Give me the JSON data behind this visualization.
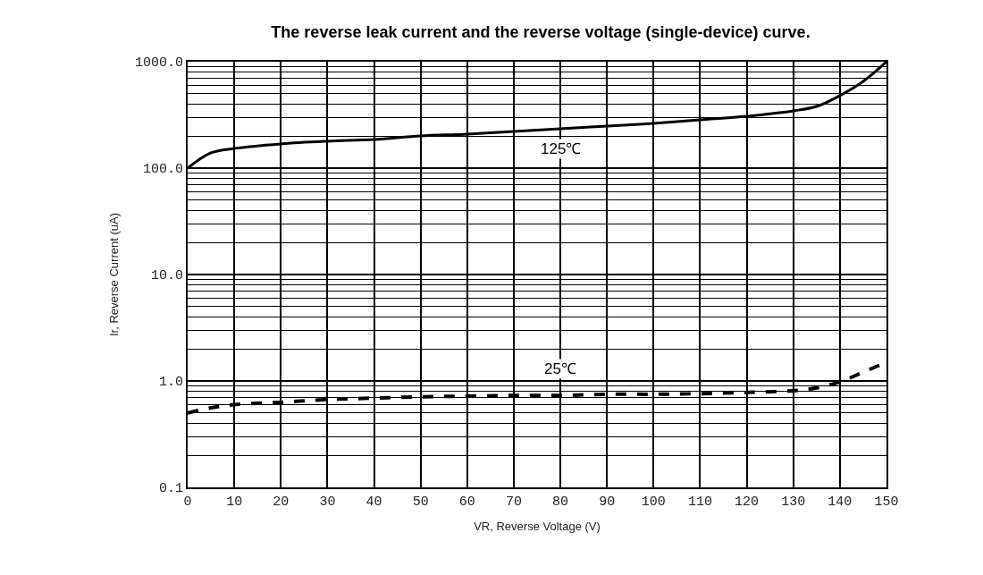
{
  "chart_data": {
    "type": "line",
    "title": "The reverse leak current and the reverse voltage (single-device) curve.",
    "xlabel": "VR, Reverse Voltage (V)",
    "ylabel": "Ir, Reverse Current (uA)",
    "x": [
      0,
      5,
      10,
      20,
      30,
      40,
      50,
      60,
      70,
      80,
      90,
      100,
      110,
      120,
      130,
      135,
      140,
      145,
      150
    ],
    "series": [
      {
        "color": "#000000",
        "line_style": "solid",
        "values": [
          100,
          139,
          153,
          169,
          179,
          186,
          201,
          209,
          221,
          234,
          248,
          263,
          284,
          307,
          345,
          380,
          480,
          653,
          1000
        ]
      },
      {
        "color": "#000000",
        "line_style": "dashed",
        "values": [
          0.5,
          0.56,
          0.6,
          0.63,
          0.67,
          0.69,
          0.71,
          0.72,
          0.73,
          0.73,
          0.75,
          0.75,
          0.76,
          0.78,
          0.81,
          0.86,
          0.98,
          1.21,
          1.5
        ]
      }
    ],
    "annotations": [
      "125℃",
      "25℃"
    ],
    "log": "y",
    "xlim": [
      0,
      150
    ],
    "xticks": [
      0,
      10,
      20,
      30,
      40,
      50,
      60,
      70,
      80,
      90,
      100,
      110,
      120,
      130,
      140,
      150
    ],
    "ylim": [
      0.1,
      1000
    ],
    "yticks": [
      {
        "value": 0.1,
        "label": "0.1"
      },
      {
        "value": 1,
        "label": "1.0"
      },
      {
        "value": 10,
        "label": "10.0"
      },
      {
        "value": 100,
        "label": "100.0"
      },
      {
        "value": 1000,
        "label": "1000.0"
      }
    ],
    "grid": true,
    "legend": false,
    "marker": "none"
  }
}
